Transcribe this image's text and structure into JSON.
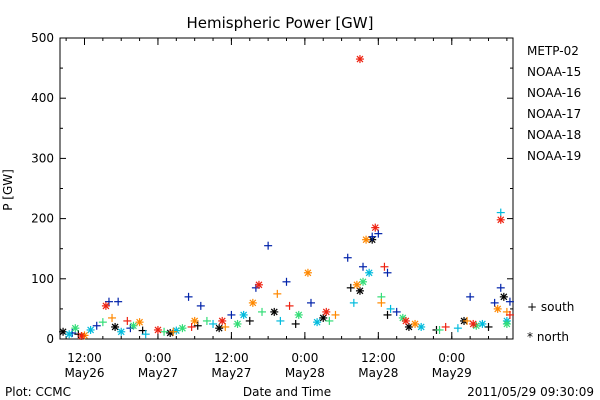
{
  "chart_data": {
    "type": "scatter",
    "title": "Hemispheric Power [GW]",
    "ylabel": "P [GW]",
    "xlabel": "Date and Time",
    "ylim": [
      0,
      500
    ],
    "yticks": [
      "0",
      "100",
      "200",
      "300",
      "400",
      "500"
    ],
    "xlim": [
      "2011-05-26 08:00",
      "2011-05-29 10:00"
    ],
    "xticks": [
      {
        "t": "2011-05-26 12:00",
        "line1": "12:00",
        "line2": "May26"
      },
      {
        "t": "2011-05-27 00:00",
        "line1": "0:00",
        "line2": "May27"
      },
      {
        "t": "2011-05-27 12:00",
        "line1": "12:00",
        "line2": "May27"
      },
      {
        "t": "2011-05-28 00:00",
        "line1": "0:00",
        "line2": "May28"
      },
      {
        "t": "2011-05-28 12:00",
        "line1": "12:00",
        "line2": "May28"
      },
      {
        "t": "2011-05-29 00:00",
        "line1": "0:00",
        "line2": "May29"
      }
    ],
    "marker_legend": [
      {
        "symbol": "+",
        "label": "south"
      },
      {
        "symbol": "*",
        "label": "north"
      }
    ],
    "series": [
      {
        "name": "METP-02",
        "color": "#000000",
        "points": [
          [
            "2011-05-26 08:30",
            12,
            "north"
          ],
          [
            "2011-05-26 11:00",
            8,
            "south"
          ],
          [
            "2011-05-26 17:00",
            20,
            "north"
          ],
          [
            "2011-05-26 21:30",
            14,
            "south"
          ],
          [
            "2011-05-27 02:00",
            10,
            "north"
          ],
          [
            "2011-05-27 06:30",
            22,
            "south"
          ],
          [
            "2011-05-27 10:00",
            18,
            "north"
          ],
          [
            "2011-05-27 15:00",
            30,
            "south"
          ],
          [
            "2011-05-27 19:00",
            45,
            "north"
          ],
          [
            "2011-05-27 22:30",
            25,
            "south"
          ],
          [
            "2011-05-28 03:00",
            35,
            "north"
          ],
          [
            "2011-05-28 07:30",
            85,
            "south"
          ],
          [
            "2011-05-28 09:00",
            80,
            "north"
          ],
          [
            "2011-05-28 11:00",
            165,
            "north"
          ],
          [
            "2011-05-28 13:30",
            40,
            "south"
          ],
          [
            "2011-05-28 17:00",
            20,
            "north"
          ],
          [
            "2011-05-28 21:30",
            15,
            "south"
          ],
          [
            "2011-05-29 02:00",
            30,
            "north"
          ],
          [
            "2011-05-29 06:00",
            20,
            "south"
          ],
          [
            "2011-05-29 08:30",
            70,
            "north"
          ]
        ]
      },
      {
        "name": "NOAA-15",
        "color": "#0022aa",
        "points": [
          [
            "2011-05-26 10:00",
            10,
            "south"
          ],
          [
            "2011-05-26 14:00",
            22,
            "south"
          ],
          [
            "2011-05-26 16:00",
            62,
            "south"
          ],
          [
            "2011-05-26 17:30",
            62,
            "south"
          ],
          [
            "2011-05-26 19:30",
            18,
            "south"
          ],
          [
            "2011-05-27 05:00",
            70,
            "south"
          ],
          [
            "2011-05-27 07:00",
            55,
            "south"
          ],
          [
            "2011-05-27 12:00",
            40,
            "south"
          ],
          [
            "2011-05-27 16:00",
            85,
            "south"
          ],
          [
            "2011-05-27 18:00",
            155,
            "south"
          ],
          [
            "2011-05-27 21:00",
            95,
            "south"
          ],
          [
            "2011-05-28 01:00",
            60,
            "south"
          ],
          [
            "2011-05-28 07:00",
            135,
            "south"
          ],
          [
            "2011-05-28 09:30",
            120,
            "south"
          ],
          [
            "2011-05-28 11:00",
            170,
            "south"
          ],
          [
            "2011-05-28 12:00",
            175,
            "south"
          ],
          [
            "2011-05-28 13:30",
            110,
            "south"
          ],
          [
            "2011-05-28 15:00",
            45,
            "south"
          ],
          [
            "2011-05-29 03:00",
            70,
            "south"
          ],
          [
            "2011-05-29 07:00",
            60,
            "south"
          ],
          [
            "2011-05-29 08:00",
            85,
            "south"
          ],
          [
            "2011-05-29 09:30",
            62,
            "south"
          ]
        ]
      },
      {
        "name": "NOAA-16",
        "color": "#00bbdd",
        "points": [
          [
            "2011-05-26 09:30",
            8,
            "north"
          ],
          [
            "2011-05-26 13:00",
            15,
            "north"
          ],
          [
            "2011-05-26 18:00",
            12,
            "north"
          ],
          [
            "2011-05-26 22:00",
            8,
            "south"
          ],
          [
            "2011-05-27 03:00",
            14,
            "north"
          ],
          [
            "2011-05-27 09:00",
            25,
            "south"
          ],
          [
            "2011-05-27 14:00",
            40,
            "north"
          ],
          [
            "2011-05-27 20:00",
            30,
            "south"
          ],
          [
            "2011-05-28 02:00",
            28,
            "north"
          ],
          [
            "2011-05-28 08:00",
            60,
            "south"
          ],
          [
            "2011-05-28 10:30",
            110,
            "north"
          ],
          [
            "2011-05-28 14:00",
            50,
            "south"
          ],
          [
            "2011-05-28 19:00",
            20,
            "north"
          ],
          [
            "2011-05-29 01:00",
            18,
            "south"
          ],
          [
            "2011-05-29 05:00",
            25,
            "north"
          ],
          [
            "2011-05-29 08:00",
            210,
            "south"
          ],
          [
            "2011-05-29 09:00",
            30,
            "north"
          ]
        ]
      },
      {
        "name": "NOAA-17",
        "color": "#33dd77",
        "points": [
          [
            "2011-05-26 10:30",
            18,
            "north"
          ],
          [
            "2011-05-26 15:00",
            28,
            "south"
          ],
          [
            "2011-05-26 20:00",
            22,
            "north"
          ],
          [
            "2011-05-27 01:00",
            12,
            "south"
          ],
          [
            "2011-05-27 04:00",
            18,
            "north"
          ],
          [
            "2011-05-27 08:00",
            30,
            "south"
          ],
          [
            "2011-05-27 13:00",
            25,
            "north"
          ],
          [
            "2011-05-27 17:00",
            45,
            "south"
          ],
          [
            "2011-05-27 23:00",
            40,
            "north"
          ],
          [
            "2011-05-28 04:00",
            30,
            "south"
          ],
          [
            "2011-05-28 09:30",
            95,
            "north"
          ],
          [
            "2011-05-28 12:30",
            70,
            "south"
          ],
          [
            "2011-05-28 16:00",
            35,
            "north"
          ],
          [
            "2011-05-28 22:00",
            15,
            "south"
          ],
          [
            "2011-05-29 04:00",
            22,
            "north"
          ],
          [
            "2011-05-29 09:00",
            25,
            "north"
          ]
        ]
      },
      {
        "name": "NOAA-18",
        "color": "#ff8800",
        "points": [
          [
            "2011-05-26 12:00",
            6,
            "north"
          ],
          [
            "2011-05-26 16:30",
            35,
            "south"
          ],
          [
            "2011-05-26 21:00",
            28,
            "north"
          ],
          [
            "2011-05-27 02:30",
            12,
            "south"
          ],
          [
            "2011-05-27 06:00",
            30,
            "north"
          ],
          [
            "2011-05-27 11:00",
            20,
            "south"
          ],
          [
            "2011-05-27 15:30",
            60,
            "north"
          ],
          [
            "2011-05-27 19:30",
            75,
            "south"
          ],
          [
            "2011-05-28 00:30",
            110,
            "north"
          ],
          [
            "2011-05-28 05:00",
            40,
            "south"
          ],
          [
            "2011-05-28 08:30",
            90,
            "north"
          ],
          [
            "2011-05-28 10:00",
            165,
            "north"
          ],
          [
            "2011-05-28 12:30",
            60,
            "south"
          ],
          [
            "2011-05-28 18:00",
            25,
            "north"
          ],
          [
            "2011-05-29 02:30",
            30,
            "south"
          ],
          [
            "2011-05-29 07:30",
            50,
            "north"
          ],
          [
            "2011-05-29 09:00",
            45,
            "south"
          ]
        ]
      },
      {
        "name": "NOAA-19",
        "color": "#ee2211",
        "points": [
          [
            "2011-05-26 11:30",
            5,
            "north"
          ],
          [
            "2011-05-26 15:30",
            55,
            "north"
          ],
          [
            "2011-05-26 19:00",
            30,
            "south"
          ],
          [
            "2011-05-27 00:00",
            15,
            "north"
          ],
          [
            "2011-05-27 05:30",
            20,
            "south"
          ],
          [
            "2011-05-27 10:30",
            30,
            "north"
          ],
          [
            "2011-05-27 16:30",
            90,
            "north"
          ],
          [
            "2011-05-27 21:30",
            55,
            "south"
          ],
          [
            "2011-05-28 03:30",
            45,
            "north"
          ],
          [
            "2011-05-28 09:00",
            465,
            "north"
          ],
          [
            "2011-05-28 11:30",
            185,
            "north"
          ],
          [
            "2011-05-28 13:00",
            120,
            "south"
          ],
          [
            "2011-05-28 16:30",
            30,
            "north"
          ],
          [
            "2011-05-28 23:00",
            20,
            "south"
          ],
          [
            "2011-05-29 03:30",
            25,
            "north"
          ],
          [
            "2011-05-29 08:00",
            198,
            "north"
          ],
          [
            "2011-05-29 09:30",
            40,
            "south"
          ]
        ]
      }
    ]
  },
  "footer": {
    "left": "Plot: CCMC",
    "center": "Date and Time",
    "right": "2011/05/29 09:30:09"
  }
}
